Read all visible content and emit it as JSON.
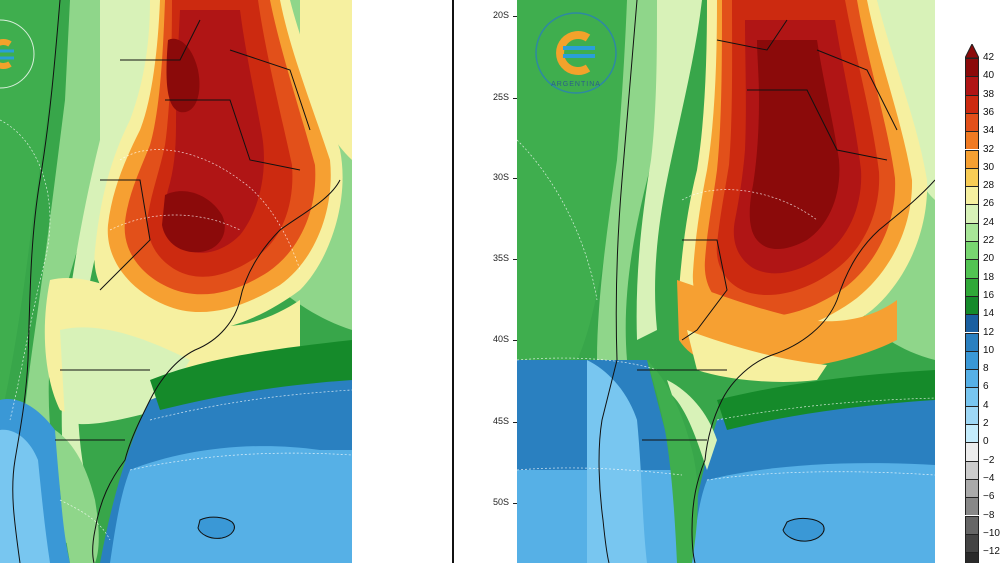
{
  "panels": [
    {
      "id": "left",
      "lat_labels": []
    },
    {
      "id": "right",
      "lat_labels": [
        "20S",
        "25S",
        "30S",
        "35S",
        "40S",
        "45S",
        "50S"
      ],
      "logo_text": "ARGENTINA"
    }
  ],
  "colorbar": {
    "levels": [
      "42",
      "40",
      "38",
      "36",
      "34",
      "32",
      "30",
      "28",
      "26",
      "24",
      "22",
      "20",
      "18",
      "16",
      "14",
      "12",
      "10",
      "8",
      "6",
      "4",
      "2",
      "0",
      "−2",
      "−4",
      "−6",
      "−8",
      "−10",
      "−12"
    ],
    "colors": [
      "#8b0a0a",
      "#b01515",
      "#cc2a10",
      "#e2501a",
      "#f07a22",
      "#f6a032",
      "#f8cc55",
      "#f6f0a0",
      "#d8f2b8",
      "#a8e698",
      "#78d670",
      "#52c352",
      "#30a838",
      "#158a2a",
      "#1a5fa0",
      "#2a80c0",
      "#3a98d6",
      "#56b0e6",
      "#78c6f0",
      "#9ed8f6",
      "#c4ecfc",
      "#ececec",
      "#cccccc",
      "#aaaaaa",
      "#888888",
      "#666666",
      "#444444",
      "#2a2a2a"
    ],
    "colors_note": "ordered from top (warmest) to bottom"
  },
  "map_colors": {
    "ocean_cool": "#3b8fd0",
    "ocean_deep": "#2f7dc4",
    "green": "#3aa848",
    "light_green": "#8fd68a",
    "pale": "#eaf4c8",
    "yellow": "#f7e07a",
    "orange": "#f08a2a",
    "red": "#d8321a",
    "dark_red": "#a01010",
    "cold_blue": "#6ab8ee"
  }
}
